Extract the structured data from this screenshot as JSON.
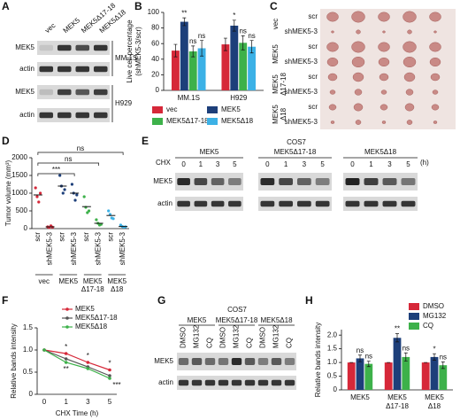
{
  "panels": [
    "A",
    "B",
    "C",
    "D",
    "E",
    "F",
    "G",
    "H"
  ],
  "blot_a": {
    "lanes": [
      "vec",
      "MEK5",
      "MEK5Δ17-18",
      "MEK5Δ18"
    ],
    "rows": [
      "MEK5",
      "actin",
      "MEK5",
      "actin"
    ],
    "cell_lines": [
      "MM.1S",
      "H929"
    ]
  },
  "photo_c": {
    "groups": [
      [
        "vec"
      ],
      [
        "MEK5"
      ],
      [
        "MEK5",
        "Δ17-18"
      ],
      [
        "MEK5",
        "Δ18"
      ]
    ],
    "rows": [
      [
        "scr",
        "shMEK5-3"
      ],
      [
        "scr",
        "shMEK5-3"
      ],
      [
        "scr",
        "shMEK5-3"
      ],
      [
        "scr",
        "shMEK5-3"
      ]
    ]
  },
  "blot_e": {
    "cell_line": "COS7",
    "groups": [
      "MEK5",
      "MEK5Δ17-18",
      "MEK5Δ18"
    ],
    "treatment": "CHX",
    "times": [
      [
        "0",
        "1",
        "3",
        "5"
      ],
      [
        "0",
        "1",
        "3",
        "5"
      ],
      [
        "0",
        "1",
        "3",
        "5"
      ]
    ],
    "unit": "(h)",
    "rows": [
      "MEK5",
      "actin"
    ]
  },
  "blot_g": {
    "cell_line": "COS7",
    "groups": [
      "MEK5",
      "MEK5Δ17-18",
      "MEK5Δ18"
    ],
    "lanes": [
      [
        "DMSO",
        "MG132",
        "CQ"
      ],
      [
        "DMSO",
        "MG132",
        "CQ"
      ],
      [
        "DMSO",
        "MG132",
        "CQ"
      ]
    ],
    "rows": [
      "MEK5",
      "actin"
    ]
  },
  "chart_data": [
    {
      "type": "bar",
      "ylabel": "Live cell percentage",
      "ylabel2": "(shMEK5-3/scr)",
      "categories": [
        "MM.1S",
        "H929"
      ],
      "ylim": [
        0,
        100
      ],
      "yticks": [
        0,
        20,
        40,
        60,
        80,
        100
      ],
      "series": [
        {
          "name": "vec",
          "color": "#d62839",
          "values": [
            51,
            59
          ],
          "errors": [
            8,
            8
          ],
          "annotations": [
            null,
            null
          ]
        },
        {
          "name": "MEK5",
          "color": "#1d3f7a",
          "values": [
            88,
            83
          ],
          "errors": [
            5,
            7
          ],
          "annotations": [
            "**",
            "*"
          ]
        },
        {
          "name": "MEK5Δ17-18",
          "color": "#3db14a",
          "values": [
            50,
            61
          ],
          "errors": [
            7,
            9
          ],
          "annotations": [
            "ns",
            "ns"
          ]
        },
        {
          "name": "MEK5Δ18",
          "color": "#3cb1e6",
          "values": [
            54,
            56
          ],
          "errors": [
            10,
            8
          ],
          "annotations": [
            "ns",
            "ns"
          ]
        }
      ]
    },
    {
      "type": "scatter",
      "ylabel": "Tumor volume (mm³)",
      "ylim": [
        0,
        2000
      ],
      "yticks": [
        0,
        500,
        1000,
        1500,
        2000
      ],
      "categories": [
        "scr",
        "shMEK5-3",
        "scr",
        "shMEK5-3",
        "scr",
        "shMEK5-3",
        "scr",
        "shMEK5-3"
      ],
      "colors": [
        "#d62839",
        "#d62839",
        "#1d3f7a",
        "#1d3f7a",
        "#3db14a",
        "#3db14a",
        "#3cb1e6",
        "#3cb1e6"
      ],
      "points": [
        [
          1150,
          900,
          750,
          1000
        ],
        [
          50,
          30,
          80,
          40
        ],
        [
          1500,
          1200,
          1000,
          1100
        ],
        [
          1250,
          1000,
          800,
          950
        ],
        [
          900,
          600,
          450,
          500
        ],
        [
          250,
          150,
          100,
          120
        ],
        [
          500,
          400,
          300,
          280
        ],
        [
          100,
          60,
          40,
          50
        ]
      ],
      "means": [
        950,
        50,
        1200,
        1000,
        620,
        150,
        370,
        60
      ],
      "groups": [
        [
          "vec"
        ],
        [
          "MEK5"
        ],
        [
          "MEK5",
          "Δ17-18"
        ],
        [
          "MEK5",
          "Δ18"
        ]
      ],
      "comparisons": [
        "***",
        "ns",
        "ns"
      ]
    },
    {
      "type": "line",
      "xlabel": "CHX Time (h)",
      "ylabel": "Relative bands intensity",
      "categories": [
        "0",
        "1",
        "3",
        "5"
      ],
      "ylim": [
        0,
        1.5
      ],
      "yticks": [
        0,
        0.5,
        {
          "value": 1,
          "label": "1.0"
        },
        1.5
      ],
      "series": [
        {
          "name": "MEK5",
          "color": "#d62839",
          "values": [
            1,
            0.92,
            0.72,
            0.55
          ],
          "annotations": [
            null,
            "*",
            "*",
            "*"
          ]
        },
        {
          "name": "MEK5Δ17-18",
          "color": "#555555",
          "values": [
            1,
            0.8,
            0.62,
            0.42
          ],
          "annotations": [
            null,
            null,
            null,
            null
          ]
        },
        {
          "name": "MEK5Δ18",
          "color": "#3db14a",
          "values": [
            1,
            0.72,
            0.58,
            0.36
          ],
          "annotations": [
            null,
            "**",
            null,
            "***"
          ]
        }
      ]
    },
    {
      "type": "bar",
      "ylabel": "Relative bands intensity",
      "categories": [
        "MEK5",
        "MEK5",
        "MEK5"
      ],
      "category_sub": [
        null,
        "Δ17-18",
        "Δ18"
      ],
      "ylim": [
        0,
        2.2
      ],
      "yticks": [
        0,
        0.5,
        {
          "value": 1,
          "label": "1.0"
        },
        1.5,
        {
          "value": 2,
          "label": "2.0"
        }
      ],
      "series": [
        {
          "name": "DMSO",
          "color": "#d62839",
          "values": [
            1,
            1,
            1
          ],
          "errors": [
            0,
            0,
            0
          ],
          "annotations": [
            null,
            null,
            null
          ]
        },
        {
          "name": "MG132",
          "color": "#1d3f7a",
          "values": [
            1.15,
            1.9,
            1.2
          ],
          "errors": [
            0.12,
            0.15,
            0.12
          ],
          "annotations": [
            "ns",
            "**",
            "*"
          ]
        },
        {
          "name": "CQ",
          "color": "#3db14a",
          "values": [
            0.95,
            1.2,
            0.9
          ],
          "errors": [
            0.1,
            0.15,
            0.12
          ],
          "annotations": [
            "ns",
            "ns",
            "ns"
          ]
        }
      ]
    }
  ]
}
